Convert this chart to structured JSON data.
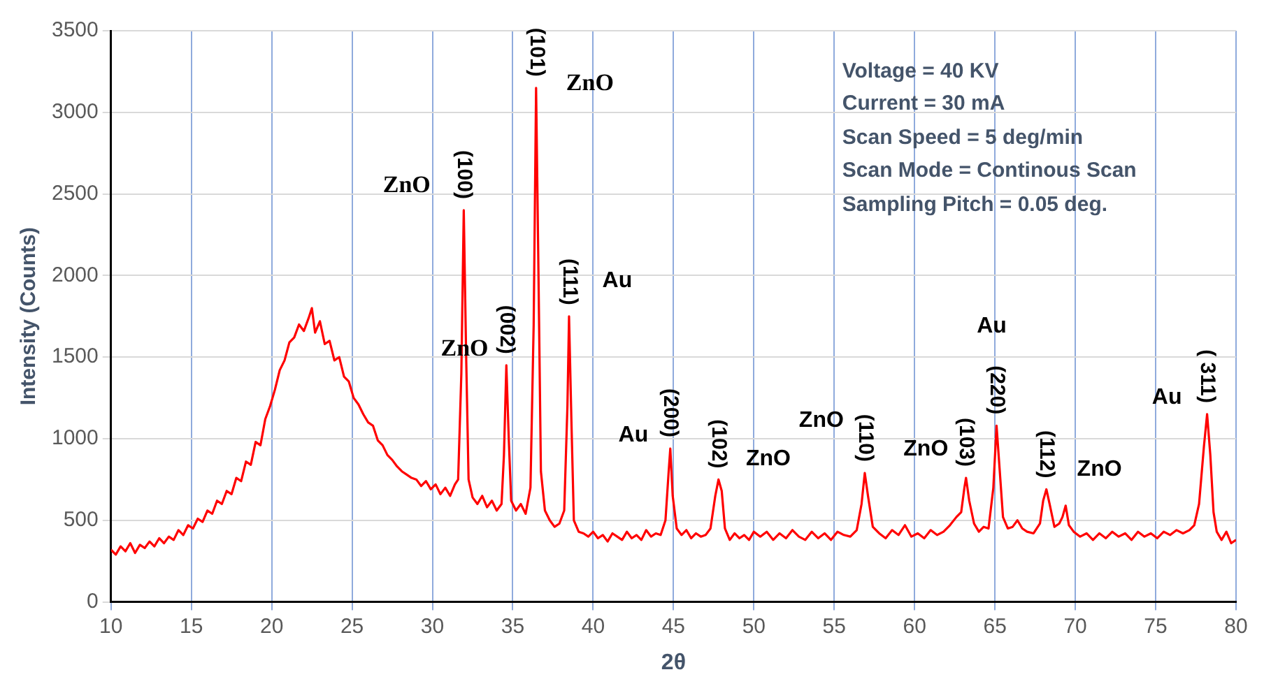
{
  "chart_data": {
    "type": "line",
    "xlabel": "2θ",
    "ylabel": "Intensity (Counts)",
    "xlim": [
      10,
      80
    ],
    "xticks": [
      10,
      15,
      20,
      25,
      30,
      35,
      40,
      45,
      50,
      55,
      60,
      65,
      70,
      75,
      80
    ],
    "ylim": [
      0,
      3500
    ],
    "yticks": [
      0,
      500,
      1000,
      1500,
      2000,
      2500,
      3000,
      3500
    ],
    "grid": true,
    "series": [
      {
        "color": "#ff0000",
        "x": [
          10,
          10.3,
          10.6,
          10.9,
          11.2,
          11.5,
          11.8,
          12.1,
          12.4,
          12.7,
          13,
          13.3,
          13.6,
          13.9,
          14.2,
          14.5,
          14.8,
          15.1,
          15.4,
          15.7,
          16,
          16.3,
          16.6,
          16.9,
          17.2,
          17.5,
          17.8,
          18.1,
          18.4,
          18.7,
          19,
          19.3,
          19.6,
          19.9,
          20.2,
          20.5,
          20.8,
          21.1,
          21.4,
          21.7,
          22,
          22.3,
          22.5,
          22.7,
          23,
          23.3,
          23.6,
          23.9,
          24.2,
          24.5,
          24.8,
          25.1,
          25.4,
          25.7,
          26,
          26.3,
          26.6,
          26.9,
          27.2,
          27.5,
          27.8,
          28.1,
          28.4,
          28.7,
          29,
          29.3,
          29.6,
          29.9,
          30.2,
          30.5,
          30.8,
          31.1,
          31.4,
          31.6,
          31.8,
          31.95,
          32.1,
          32.25,
          32.5,
          32.8,
          33.1,
          33.4,
          33.7,
          34,
          34.3,
          34.45,
          34.6,
          34.75,
          34.9,
          35.2,
          35.5,
          35.8,
          36.1,
          36.3,
          36.45,
          36.6,
          36.75,
          37,
          37.3,
          37.6,
          37.9,
          38.2,
          38.4,
          38.5,
          38.65,
          38.8,
          39.1,
          39.4,
          39.7,
          40,
          40.3,
          40.6,
          40.9,
          41.2,
          41.5,
          41.8,
          42.1,
          42.4,
          42.7,
          43,
          43.3,
          43.6,
          43.9,
          44.2,
          44.5,
          44.7,
          44.8,
          44.95,
          45.2,
          45.5,
          45.8,
          46.1,
          46.4,
          46.7,
          47,
          47.3,
          47.6,
          47.8,
          48,
          48.2,
          48.5,
          48.8,
          49.1,
          49.4,
          49.7,
          50,
          50.4,
          50.8,
          51.2,
          51.6,
          52,
          52.4,
          52.8,
          53.2,
          53.6,
          54,
          54.4,
          54.8,
          55.2,
          55.6,
          56,
          56.4,
          56.7,
          56.9,
          57.1,
          57.4,
          57.8,
          58.2,
          58.6,
          59,
          59.4,
          59.8,
          60.2,
          60.6,
          61,
          61.4,
          61.8,
          62.2,
          62.6,
          62.9,
          63.1,
          63.2,
          63.4,
          63.7,
          64,
          64.3,
          64.6,
          64.9,
          65.1,
          65.3,
          65.5,
          65.8,
          66.1,
          66.4,
          66.7,
          67,
          67.4,
          67.8,
          68,
          68.2,
          68.4,
          68.7,
          69,
          69.2,
          69.4,
          69.6,
          69.9,
          70.3,
          70.7,
          71.1,
          71.5,
          71.9,
          72.3,
          72.7,
          73.1,
          73.5,
          73.9,
          74.3,
          74.7,
          75.1,
          75.5,
          75.9,
          76.3,
          76.7,
          77.1,
          77.4,
          77.7,
          78,
          78.2,
          78.4,
          78.6,
          78.8,
          79.1,
          79.4,
          79.7,
          80
        ],
        "values": [
          320,
          290,
          340,
          310,
          360,
          300,
          350,
          330,
          370,
          340,
          390,
          360,
          400,
          380,
          440,
          410,
          470,
          450,
          510,
          490,
          560,
          540,
          620,
          600,
          680,
          660,
          760,
          740,
          860,
          840,
          980,
          960,
          1120,
          1200,
          1300,
          1420,
          1480,
          1590,
          1620,
          1700,
          1660,
          1740,
          1800,
          1650,
          1720,
          1580,
          1600,
          1480,
          1500,
          1380,
          1350,
          1250,
          1210,
          1150,
          1100,
          1080,
          990,
          960,
          900,
          870,
          830,
          800,
          780,
          760,
          750,
          710,
          740,
          690,
          720,
          660,
          700,
          650,
          720,
          750,
          1400,
          2400,
          1500,
          750,
          640,
          600,
          650,
          580,
          620,
          560,
          600,
          900,
          1450,
          1000,
          620,
          560,
          600,
          540,
          700,
          1700,
          3150,
          2000,
          800,
          560,
          500,
          460,
          480,
          560,
          1200,
          1750,
          1100,
          500,
          430,
          420,
          400,
          430,
          390,
          410,
          370,
          420,
          400,
          380,
          430,
          390,
          410,
          380,
          440,
          400,
          420,
          410,
          500,
          800,
          940,
          650,
          450,
          410,
          440,
          390,
          420,
          400,
          410,
          450,
          650,
          750,
          680,
          450,
          380,
          420,
          390,
          410,
          380,
          430,
          400,
          430,
          380,
          420,
          390,
          440,
          400,
          380,
          430,
          390,
          420,
          380,
          430,
          410,
          400,
          440,
          600,
          790,
          650,
          460,
          420,
          390,
          440,
          410,
          470,
          400,
          420,
          390,
          440,
          410,
          430,
          470,
          520,
          550,
          700,
          760,
          620,
          480,
          430,
          460,
          450,
          700,
          1080,
          800,
          520,
          450,
          460,
          500,
          450,
          430,
          420,
          480,
          620,
          690,
          600,
          460,
          480,
          520,
          590,
          470,
          430,
          400,
          420,
          380,
          420,
          390,
          430,
          400,
          420,
          380,
          430,
          400,
          420,
          390,
          430,
          410,
          440,
          420,
          440,
          470,
          600,
          950,
          1150,
          900,
          550,
          430,
          380,
          430,
          360,
          380
        ]
      }
    ],
    "annotations": [
      "Voltage = 40 KV",
      "Current = 30 mA",
      "Scan Speed = 5 deg/min",
      "Scan Mode = Continous Scan",
      "Sampling Pitch = 0.05 deg.",
      "ZnO",
      "ZnO",
      "ZnO",
      "Au",
      "Au",
      "ZnO",
      "ZnO",
      "ZnO",
      "Au",
      "ZnO",
      "Au",
      {
        "text": "(100)",
        "x": 31.95,
        "y": 2400
      },
      {
        "text": "(002)",
        "x": 34.6,
        "y": 1450
      },
      {
        "text": "(101)",
        "x": 36.45,
        "y": 3150
      },
      {
        "text": "(111)",
        "x": 38.5,
        "y": 1750
      },
      {
        "text": "(200)",
        "x": 44.8,
        "y": 940
      },
      {
        "text": "(102)",
        "x": 47.8,
        "y": 750
      },
      {
        "text": "(110)",
        "x": 56.9,
        "y": 790
      },
      {
        "text": "(103)",
        "x": 63.2,
        "y": 760
      },
      {
        "text": "(220)",
        "x": 65.1,
        "y": 1080
      },
      {
        "text": "(112)",
        "x": 68.2,
        "y": 690
      },
      {
        "text": "( 311)",
        "x": 78.2,
        "y": 1150
      }
    ]
  }
}
